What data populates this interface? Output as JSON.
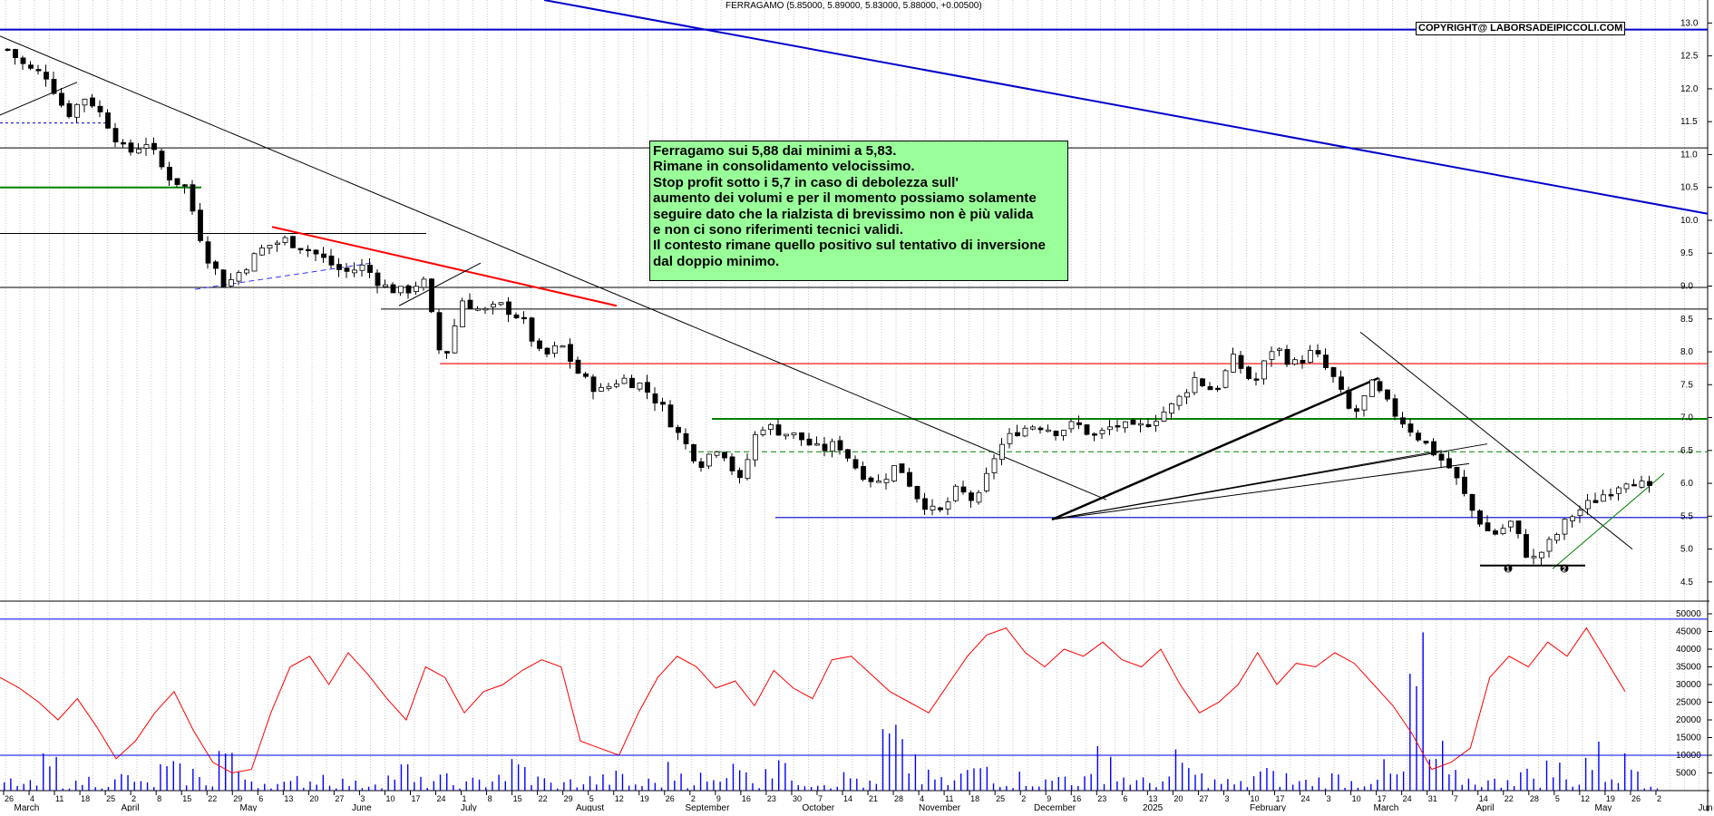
{
  "title": "FERRAGAMO (5.85000, 5.89000, 5.83000, 5.88000, +0.00500)",
  "copyright": "COPYRIGHT@ LABORSADEIPICCOLI.COM",
  "note_lines": [
    "Ferragamo sui 5,88 dai minimi a 5,83.",
    "Rimane in consolidamento velocissimo.",
    "Stop profit sotto i 5,7 in caso di debolezza sull'",
    "aumento dei volumi e per il momento possiamo solamente",
    "seguire dato che la rialzista di brevissimo non è più valida",
    "e non ci sono riferimenti tecnici validi.",
    "Il contesto rimane quello positivo sul tentativo di inversione",
    "dal doppio minimo."
  ],
  "colors": {
    "up_candle": "#ffffff",
    "down_candle": "#000000",
    "oscillator": "#ff0000",
    "volume": "#0000ff",
    "resistance_red": "#ff0000",
    "support_blue": "#0000cc",
    "support_green": "#008000",
    "note_bg": "#99ff99"
  },
  "chart_data": [
    {
      "type": "candlestick",
      "title": "FERRAGAMO (5.85000, 5.89000, 5.83000, 5.88000, +0.00500)",
      "ylim": [
        4.25,
        13.35
      ],
      "y_ticks": [
        "4.5",
        "5.0",
        "5.5",
        "6.0",
        "6.5",
        "7.0",
        "7.5",
        "8.0",
        "8.5",
        "9.0",
        "9.5",
        "10.0",
        "10.5",
        "11.0",
        "11.5",
        "12.0",
        "12.5",
        "13.0"
      ],
      "close_path": [
        12.6,
        12.3,
        12.2,
        11.6,
        11.9,
        11.5,
        11.0,
        11.2,
        10.7,
        10.5,
        9.5,
        9.0,
        9.3,
        9.6,
        9.7,
        9.6,
        9.4,
        9.2,
        9.3,
        9.0,
        8.9,
        9.1,
        7.8,
        8.8,
        8.6,
        8.7,
        8.5,
        7.9,
        8.1,
        7.6,
        7.4,
        7.6,
        7.5,
        7.2,
        6.7,
        6.3,
        6.6,
        6.0,
        6.9,
        6.8,
        6.7,
        6.5,
        6.6,
        6.2,
        6.0,
        6.3,
        5.8,
        5.5,
        5.9,
        5.7,
        6.5,
        6.8,
        6.9,
        6.8,
        6.9,
        6.7,
        6.9,
        6.8,
        7.0,
        7.2,
        7.6,
        7.4,
        7.9,
        7.5,
        8.1,
        7.8,
        8.0,
        7.6,
        7.0,
        7.5,
        7.1,
        6.8,
        6.5,
        6.2,
        5.6,
        5.2,
        5.4,
        4.8,
        5.1,
        5.5,
        5.7,
        5.9,
        6.1,
        5.88
      ],
      "annotations": [
        "1",
        "2"
      ]
    },
    {
      "type": "line",
      "name": "oscillator",
      "ylim": [
        0,
        50000
      ],
      "y_ticks": [
        "5000",
        "10000",
        "15000",
        "20000",
        "25000",
        "30000",
        "35000",
        "40000",
        "45000",
        "50000"
      ],
      "values": [
        32000,
        29000,
        25000,
        20000,
        26000,
        18000,
        9000,
        14000,
        22000,
        28000,
        17000,
        8000,
        5000,
        6000,
        22000,
        35000,
        38000,
        30000,
        39000,
        33000,
        26000,
        20000,
        35000,
        32000,
        22000,
        28000,
        30000,
        34000,
        37000,
        35000,
        14000,
        12000,
        10000,
        22000,
        32000,
        38000,
        35000,
        29000,
        31000,
        24000,
        34000,
        29000,
        26000,
        37000,
        38000,
        33000,
        28000,
        25000,
        22000,
        30000,
        38000,
        44000,
        46000,
        39000,
        35000,
        40000,
        38000,
        42000,
        37000,
        35000,
        40000,
        30000,
        22000,
        25000,
        30000,
        39000,
        30000,
        36000,
        35000,
        39000,
        36000,
        30000,
        24000,
        16000,
        6000,
        8000,
        12000,
        32000,
        38000,
        35000,
        42000,
        38000,
        46000,
        37000,
        28000
      ],
      "volume_values": [
        4,
        3,
        11,
        3,
        5,
        4,
        6,
        3,
        9,
        8,
        5,
        18,
        6,
        4,
        3,
        5,
        7,
        4,
        3,
        6,
        9,
        4,
        5,
        3,
        4,
        8,
        10,
        5,
        3,
        4,
        5,
        6,
        3,
        4,
        9,
        6,
        4,
        22,
        6,
        15,
        8,
        5,
        4,
        6,
        3,
        22,
        15,
        6,
        4,
        8,
        12,
        5,
        6,
        4,
        7,
        5,
        18,
        6,
        4,
        5,
        12,
        6,
        4,
        3,
        8,
        6,
        4,
        5,
        6,
        4,
        9,
        7,
        48,
        15,
        6,
        5,
        4,
        8,
        7,
        10,
        5,
        15,
        9,
        12,
        4
      ]
    }
  ],
  "axis": {
    "months": [
      "March",
      "April",
      "May",
      "June",
      "July",
      "August",
      "September",
      "October",
      "November",
      "December",
      "2025",
      "February",
      "March",
      "April",
      "May",
      "Jun"
    ],
    "days": [
      "26",
      "4",
      "11",
      "18",
      "25",
      "2",
      "8",
      "15",
      "22",
      "29",
      "6",
      "13",
      "20",
      "27",
      "3",
      "10",
      "17",
      "24",
      "1",
      "8",
      "15",
      "22",
      "29",
      "5",
      "12",
      "19",
      "26",
      "2",
      "9",
      "16",
      "23",
      "30",
      "7",
      "14",
      "21",
      "28",
      "4",
      "11",
      "18",
      "25",
      "2",
      "9",
      "16",
      "23",
      "6",
      "13",
      "20",
      "27",
      "3",
      "10",
      "17",
      "24",
      "3",
      "10",
      "17",
      "24",
      "31",
      "7",
      "14",
      "22",
      "28",
      "5",
      "12",
      "19",
      "26",
      "2"
    ]
  }
}
